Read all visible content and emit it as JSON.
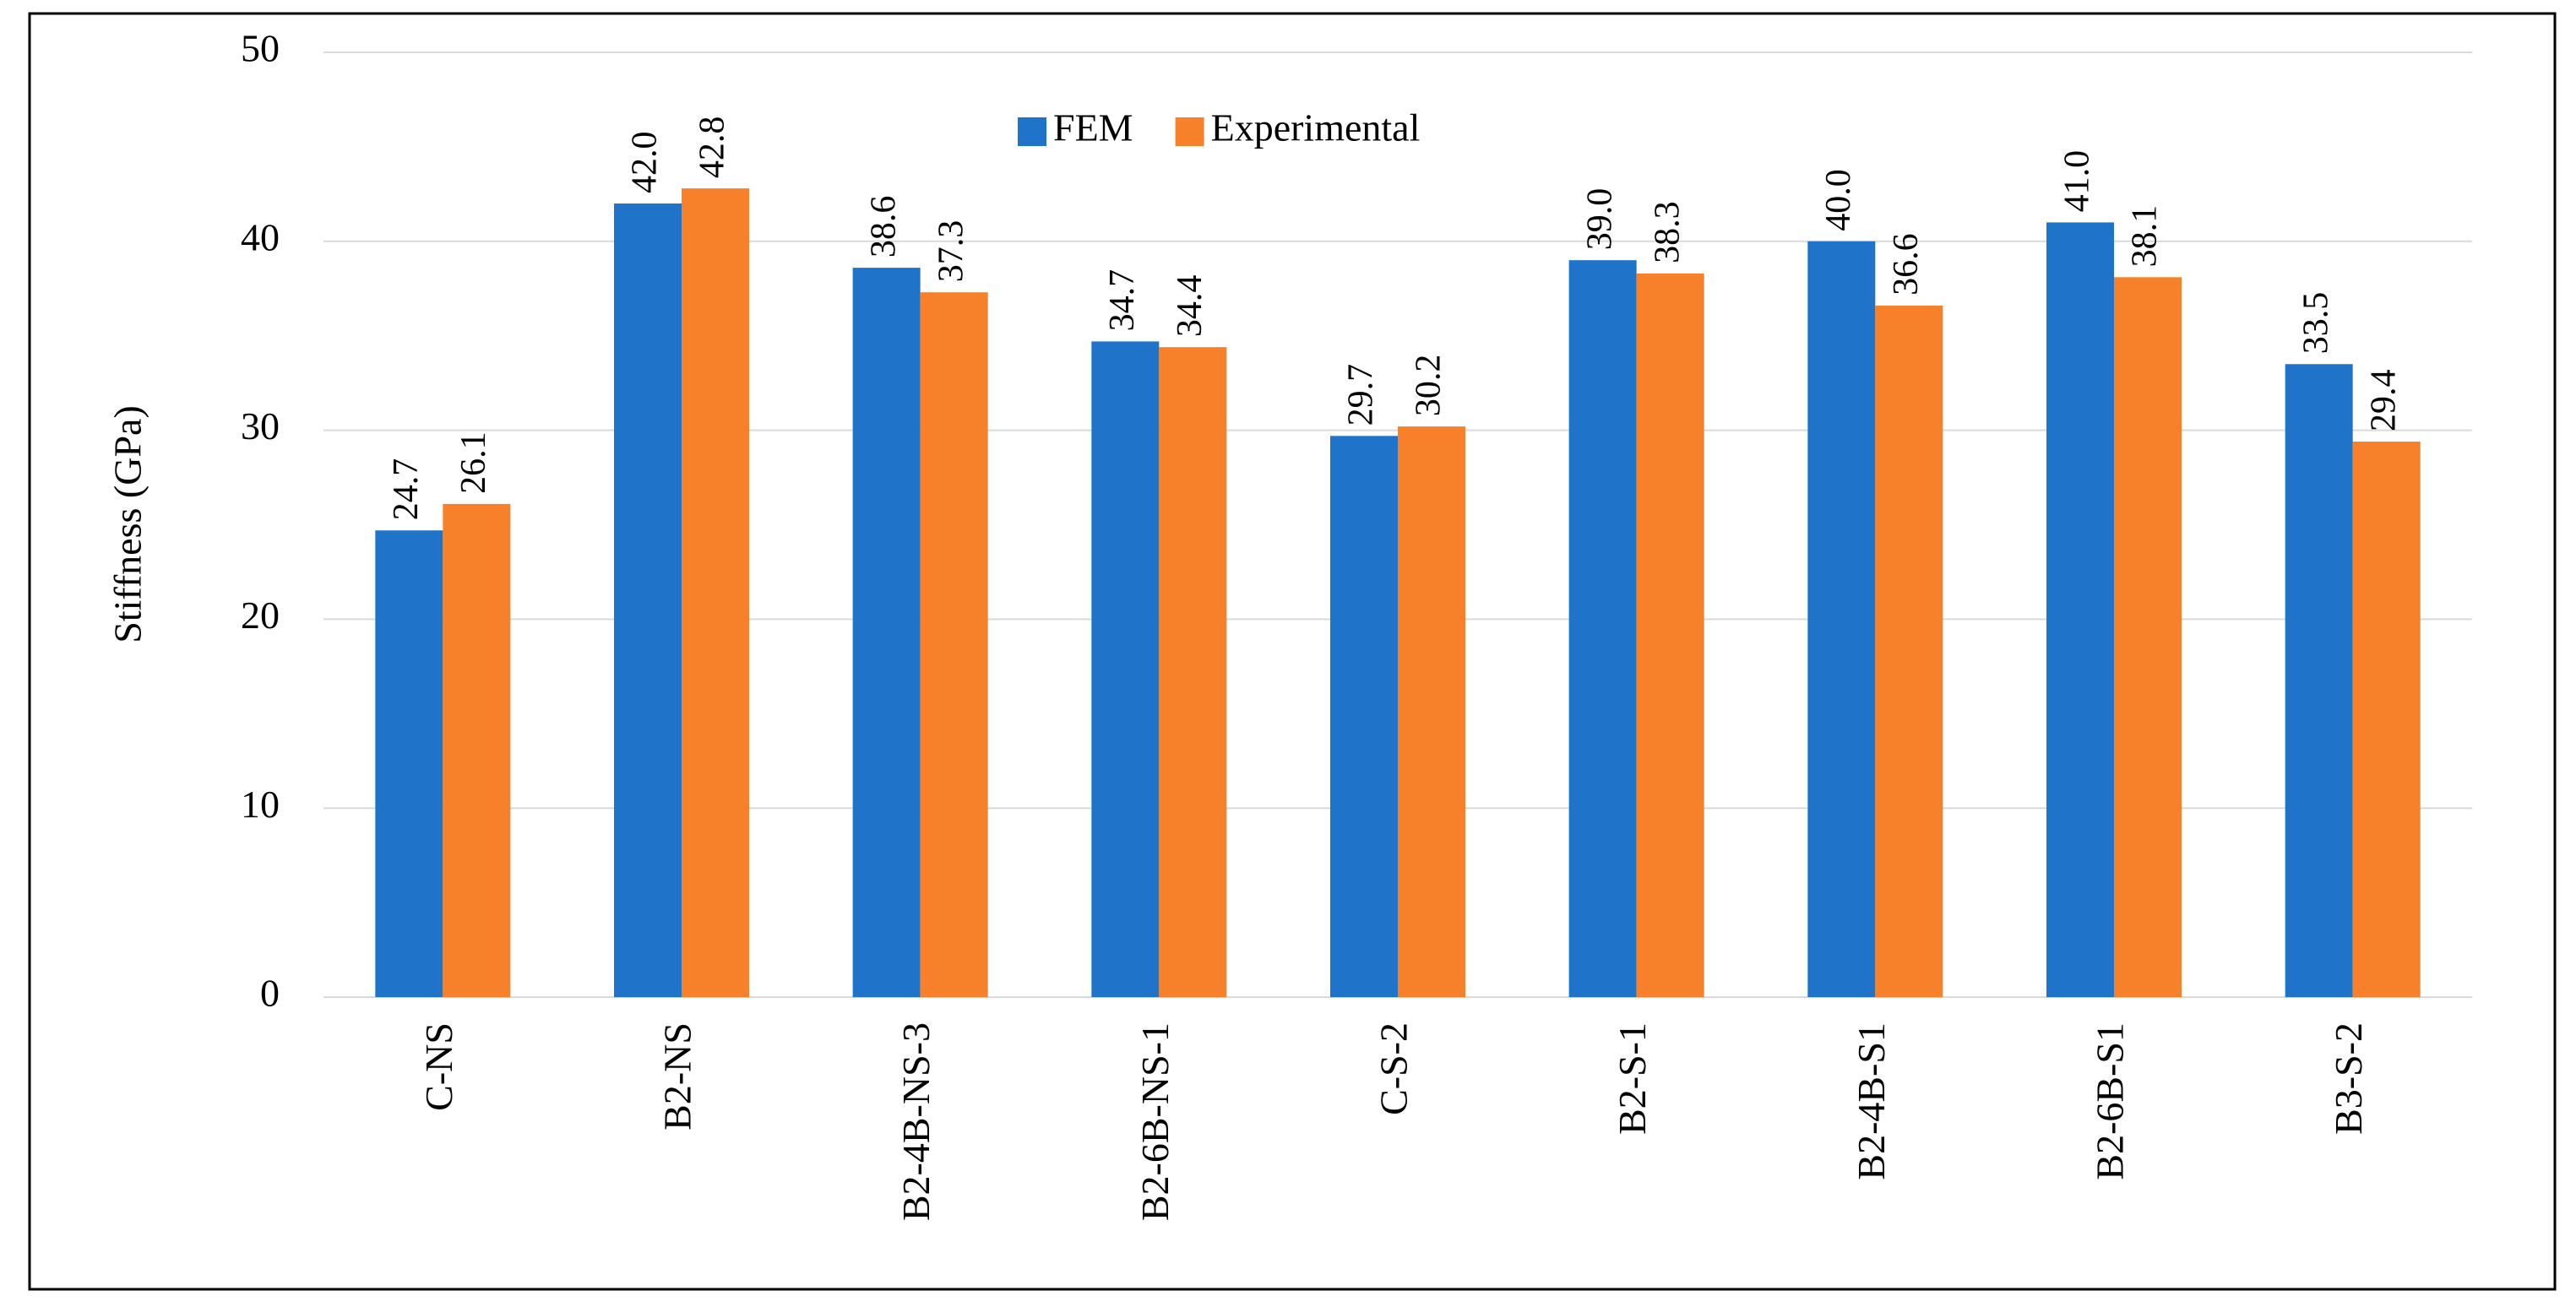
{
  "chart_data": {
    "type": "bar",
    "y_label": "Stiffness (GPa)",
    "categories": [
      "C-NS",
      "B2-NS",
      "B2-4B-NS-3",
      "B2-6B-NS-1",
      "C-S-2",
      "B2-S-1",
      "B2-4B-S1",
      "B2-6B-S1",
      "B3-S-2"
    ],
    "series": [
      {
        "name": "FEM",
        "color": "#1f73c9",
        "values": [
          24.7,
          42.0,
          38.6,
          34.7,
          29.7,
          39.0,
          40.0,
          41.0,
          33.5
        ],
        "value_labels": [
          "24.7",
          "42.0",
          "38.6",
          "34.7",
          "29.7",
          "39.0",
          "40.0",
          "41.0",
          "33.5"
        ]
      },
      {
        "name": "Experimental",
        "color": "#f7812a",
        "values": [
          26.1,
          42.8,
          37.3,
          34.4,
          30.2,
          38.3,
          36.6,
          38.1,
          29.4
        ],
        "value_labels": [
          "26.1",
          "42.8",
          "37.3",
          "34.4",
          "30.2",
          "38.3",
          "36.6",
          "38.1",
          "29.4"
        ]
      }
    ],
    "ylim": [
      0,
      50
    ],
    "yticks": [
      0,
      10,
      20,
      30,
      40,
      50
    ],
    "grid": true,
    "legend": "top"
  }
}
